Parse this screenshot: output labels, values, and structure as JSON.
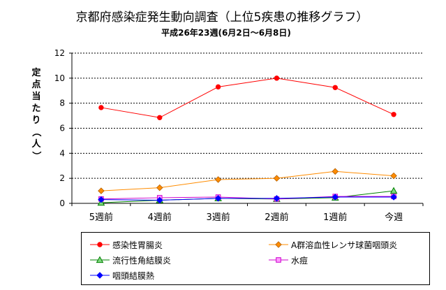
{
  "chart_data": {
    "type": "line",
    "title": "京都府感染症発生動向調査（上位5疾患の推移グラフ）",
    "subtitle": "平成26年23週(6月2日～6月8日)",
    "xlabel": "",
    "ylabel": "定点当たり（人）",
    "categories": [
      "5週前",
      "4週前",
      "3週前",
      "2週前",
      "1週前",
      "今週"
    ],
    "ylim": [
      0,
      12
    ],
    "yticks": [
      0,
      2,
      4,
      6,
      8,
      10,
      12
    ],
    "grid": "horizontal dashed",
    "legend_placement": "bottom",
    "series": [
      {
        "name": "感染性胃腸炎",
        "color": "#ff0000",
        "marker": "circle",
        "values": [
          7.65,
          6.85,
          9.3,
          10.0,
          9.25,
          7.1
        ]
      },
      {
        "name": "A群溶血性レンサ球菌咽頭炎",
        "color": "#ff8c00",
        "marker": "diamond",
        "values": [
          1.0,
          1.25,
          1.9,
          2.0,
          2.55,
          2.2
        ]
      },
      {
        "name": "流行性角結膜炎",
        "color": "#008000",
        "marker": "triangle",
        "values": [
          0.05,
          0.25,
          0.4,
          0.35,
          0.45,
          1.0
        ]
      },
      {
        "name": "水痘",
        "color": "#cc00cc",
        "marker": "square",
        "values": [
          0.35,
          0.45,
          0.5,
          0.35,
          0.55,
          0.55
        ]
      },
      {
        "name": "咽頭結膜熱",
        "color": "#0000ff",
        "marker": "diamond",
        "values": [
          0.3,
          0.25,
          0.4,
          0.4,
          0.5,
          0.5
        ]
      }
    ]
  }
}
